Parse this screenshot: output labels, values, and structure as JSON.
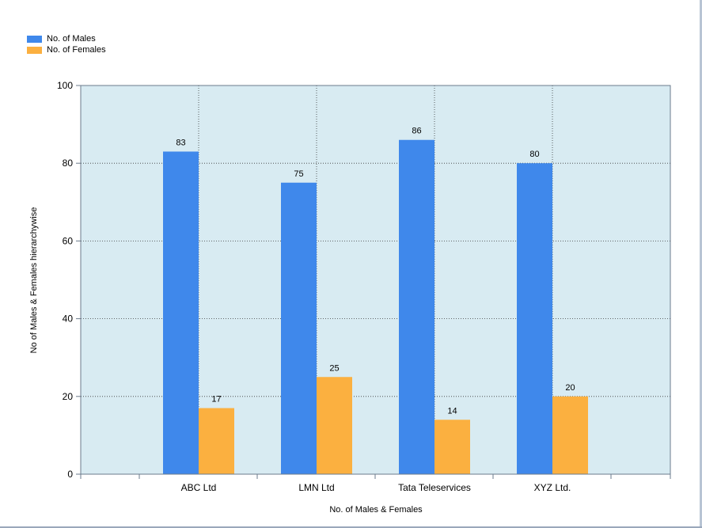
{
  "chart_data": {
    "type": "bar",
    "categories": [
      "ABC Ltd",
      "LMN Ltd",
      "Tata Teleservices",
      "XYZ Ltd."
    ],
    "series": [
      {
        "name": "No. of Males",
        "values": [
          83,
          75,
          86,
          80
        ],
        "color": "#3f88eb"
      },
      {
        "name": "No. of Females",
        "values": [
          17,
          25,
          14,
          20
        ],
        "color": "#fbb040"
      }
    ],
    "title": "",
    "xlabel": "No. of Males & Females",
    "ylabel": "No of Males & Females hierarchywise",
    "ylim": [
      0,
      100
    ],
    "yticks": [
      0,
      20,
      40,
      60,
      80,
      100
    ],
    "grid": true,
    "legend_position": "top-left",
    "plot_background": "#d8ebf2",
    "data_labels": true
  }
}
